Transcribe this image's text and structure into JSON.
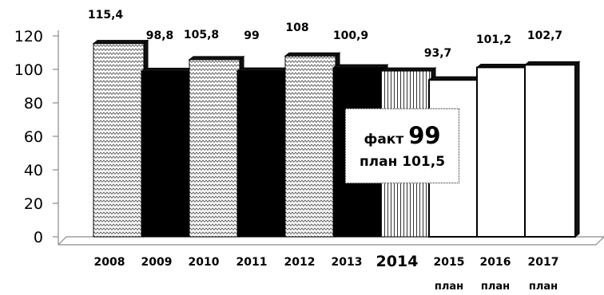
{
  "chart_data": {
    "type": "bar",
    "categories": [
      "2008",
      "2009",
      "2010",
      "2011",
      "2012",
      "2013",
      "2014",
      "2015",
      "2016",
      "2017"
    ],
    "values": [
      115.4,
      98.8,
      105.8,
      99,
      108,
      100.9,
      99,
      93.7,
      101.2,
      102.7
    ],
    "data_labels": [
      "115,4",
      "98,8",
      "105,8",
      "99",
      "108",
      "100,9",
      "",
      "93,7",
      "101,2",
      "102,7"
    ],
    "sub_labels": [
      "",
      "",
      "",
      "",
      "",
      "",
      "",
      "план",
      "план",
      "план"
    ],
    "bar_styles": [
      "zigzag",
      "solid",
      "zigzag",
      "solid",
      "zigzag",
      "solid",
      "vlines",
      "white",
      "white",
      "white"
    ],
    "ylim": [
      0,
      120
    ],
    "yticks": [
      0,
      20,
      40,
      60,
      80,
      100,
      120
    ],
    "grid": false,
    "title": "",
    "xlabel": "",
    "ylabel": ""
  },
  "callout": {
    "fact_label": "факт",
    "fact_value": "99",
    "plan_text": "план 101,5"
  },
  "colors": {
    "solid_bar": "#000000",
    "white_bar": "#ffffff",
    "outline": "#000000",
    "axis": "#8a8a8a"
  }
}
